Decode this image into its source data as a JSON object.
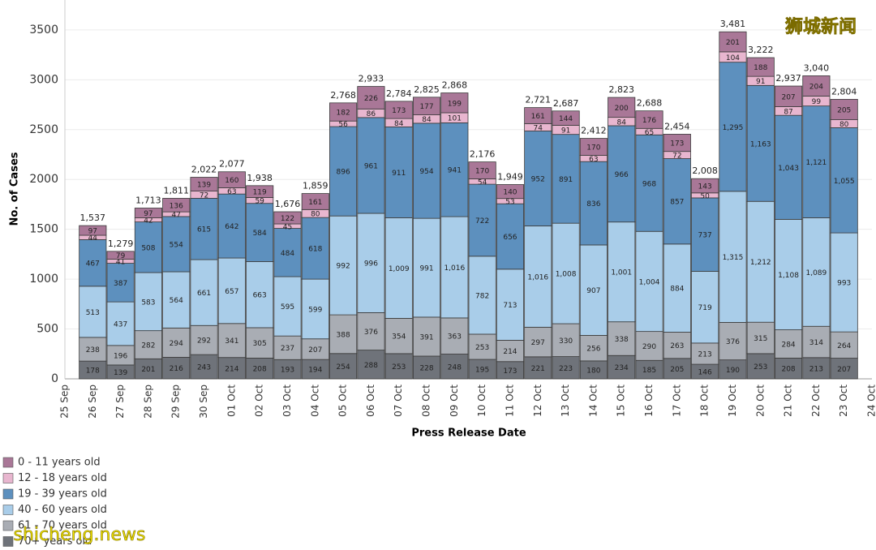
{
  "chart_data": {
    "type": "stacked_bar",
    "y_label": "No. of Cases",
    "x_label": "Press Release Date",
    "categories": [
      "25 Sep",
      "26 Sep",
      "27 Sep",
      "28 Sep",
      "29 Sep",
      "30 Sep",
      "01 Oct",
      "02 Oct",
      "03 Oct",
      "04 Oct",
      "05 Oct",
      "06 Oct",
      "07 Oct",
      "08 Oct",
      "09 Oct",
      "10 Oct",
      "11 Oct",
      "12 Oct",
      "13 Oct",
      "14 Oct",
      "15 Oct",
      "16 Oct",
      "17 Oct",
      "18 Oct",
      "19 Oct",
      "20 Oct",
      "21 Oct",
      "22 Oct",
      "23 Oct",
      "24 Oct"
    ],
    "ylim": [
      0,
      3800
    ],
    "yticks": [
      0,
      500,
      1000,
      1500,
      2000,
      2500,
      3000,
      3500
    ],
    "grid": true,
    "series": [
      {
        "name": "70+ years old",
        "color": "#6f737a",
        "values": [
          null,
          178,
          139,
          201,
          216,
          243,
          214,
          208,
          193,
          194,
          254,
          288,
          253,
          228,
          248,
          195,
          173,
          221,
          223,
          180,
          234,
          185,
          205,
          146,
          190,
          253,
          208,
          213,
          207,
          null
        ]
      },
      {
        "name": "61 - 70 years old",
        "color": "#a9adb4",
        "values": [
          null,
          238,
          196,
          282,
          294,
          292,
          341,
          305,
          237,
          207,
          388,
          376,
          354,
          391,
          363,
          253,
          214,
          297,
          330,
          256,
          338,
          290,
          263,
          213,
          376,
          315,
          284,
          314,
          264,
          null
        ]
      },
      {
        "name": "40 - 60 years old",
        "color": "#a9cde9",
        "values": [
          null,
          513,
          437,
          583,
          564,
          661,
          657,
          663,
          595,
          599,
          992,
          996,
          1009,
          991,
          1016,
          782,
          713,
          1016,
          1008,
          907,
          1001,
          1004,
          884,
          719,
          1315,
          1212,
          1108,
          1089,
          993,
          null
        ],
        "value_labels": [
          null,
          "513",
          "437",
          "583",
          "564",
          "661",
          "657",
          "663",
          "595",
          "599",
          "992",
          "996",
          "1,009",
          "991",
          "1,016",
          "782",
          "713",
          "1,016",
          "1,008",
          "907",
          "1,001",
          "1,004",
          "884",
          "719",
          "1,315",
          "1,212",
          "1,108",
          "1,089",
          "993",
          null
        ]
      },
      {
        "name": "19 - 39 years old",
        "color": "#5d90be",
        "values": [
          null,
          467,
          387,
          508,
          554,
          615,
          642,
          584,
          484,
          618,
          896,
          961,
          911,
          954,
          941,
          722,
          656,
          952,
          891,
          836,
          966,
          968,
          857,
          737,
          1295,
          1163,
          1043,
          1121,
          1055,
          null
        ],
        "value_labels": [
          null,
          "467",
          "387",
          "508",
          "554",
          "615",
          "642",
          "584",
          "484",
          "618",
          "896",
          "961",
          "911",
          "954",
          "941",
          "722",
          "656",
          "952",
          "891",
          "836",
          "966",
          "968",
          "857",
          "737",
          "1,295",
          "1,163",
          "1,043",
          "1,121",
          "1,055",
          null
        ]
      },
      {
        "name": "12 - 18 years old",
        "color": "#e8b6cf",
        "values": [
          null,
          44,
          41,
          42,
          47,
          72,
          63,
          59,
          45,
          80,
          56,
          86,
          84,
          84,
          101,
          54,
          53,
          74,
          91,
          63,
          84,
          65,
          72,
          50,
          104,
          91,
          87,
          99,
          80,
          null
        ]
      },
      {
        "name": "0 - 11 years old",
        "color": "#a97797",
        "values": [
          null,
          97,
          79,
          97,
          136,
          139,
          160,
          119,
          122,
          161,
          182,
          226,
          173,
          177,
          199,
          170,
          140,
          161,
          144,
          170,
          200,
          176,
          173,
          143,
          201,
          188,
          207,
          204,
          205,
          null
        ]
      }
    ],
    "totals": [
      null,
      1537,
      1279,
      1713,
      1811,
      2022,
      2077,
      1938,
      1676,
      1859,
      2768,
      2933,
      2784,
      2825,
      2868,
      2176,
      1949,
      2721,
      2687,
      2412,
      2823,
      2688,
      2454,
      2008,
      3481,
      3222,
      2937,
      3040,
      2804,
      null
    ],
    "total_labels": [
      null,
      "1,537",
      "1,279",
      "1,713",
      "1,811",
      "2,022",
      "2,077",
      "1,938",
      "1,676",
      "1,859",
      "2,768",
      "2,933",
      "2,784",
      "2,825",
      "2,868",
      "2,176",
      "1,949",
      "2,721",
      "2,687",
      "2,412",
      "2,823",
      "2,688",
      "2,454",
      "2,008",
      "3,481",
      "3,222",
      "2,937",
      "3,040",
      "2,804",
      null
    ],
    "watermarks": [
      "狮城新闻",
      "shicheng.news"
    ]
  }
}
